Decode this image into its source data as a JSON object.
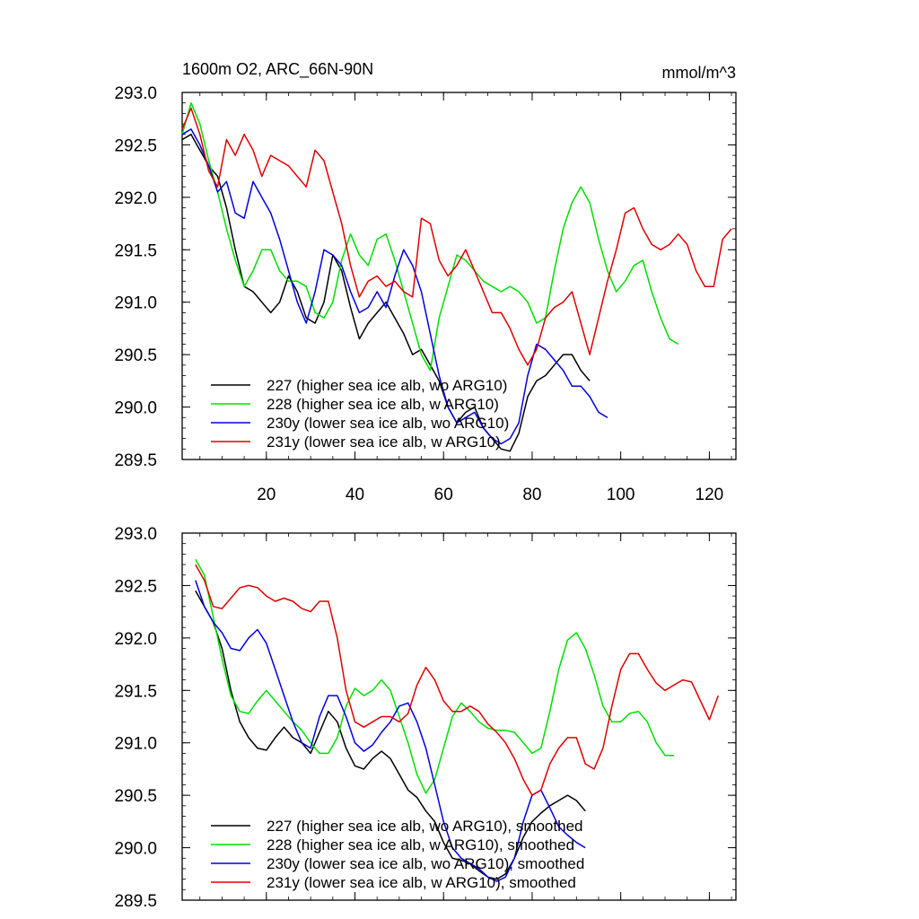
{
  "title": "1600m O2, ARC_66N-90N",
  "units": "mmol/m^3",
  "colors": {
    "227": "#000000",
    "228": "#00e000",
    "230y": "#0000e0",
    "231y": "#e00000"
  },
  "chart_data": [
    {
      "type": "line",
      "title": "1600m O2, ARC_66N-90N",
      "units_label": "mmol/m^3",
      "xlim": [
        1,
        126
      ],
      "ylim": [
        289.5,
        293.0
      ],
      "xticks": [
        20,
        40,
        60,
        80,
        100,
        120
      ],
      "xtick_labels": [
        "20",
        "40",
        "60",
        "80",
        "100",
        "120"
      ],
      "yticks": [
        289.5,
        290.0,
        290.5,
        291.0,
        291.5,
        292.0,
        292.5,
        293.0
      ],
      "ytick_labels": [
        "289.5",
        "290.0",
        "290.5",
        "291.0",
        "291.5",
        "292.0",
        "292.5",
        "293.0"
      ],
      "series": [
        {
          "name": "227 (higher sea ice alb, wo ARG10)",
          "key": "227",
          "x": [
            1,
            3,
            5,
            7,
            9,
            11,
            13,
            15,
            17,
            19,
            21,
            23,
            25,
            27,
            29,
            31,
            33,
            35,
            37,
            39,
            41,
            43,
            45,
            47,
            49,
            51,
            53,
            55,
            57,
            59,
            61,
            63,
            65,
            67,
            69,
            71,
            73,
            75,
            77,
            79,
            81,
            83,
            85,
            87,
            89,
            91,
            93
          ],
          "y": [
            292.55,
            292.6,
            292.45,
            292.3,
            292.2,
            291.9,
            291.5,
            291.15,
            291.1,
            291.0,
            290.9,
            291.0,
            291.25,
            291.1,
            290.85,
            290.8,
            291.0,
            291.45,
            291.3,
            290.95,
            290.65,
            290.8,
            290.9,
            291.0,
            290.85,
            290.7,
            290.5,
            290.55,
            290.4,
            290.25,
            290.0,
            289.85,
            289.95,
            290.0,
            289.8,
            289.7,
            289.6,
            289.58,
            289.75,
            290.1,
            290.25,
            290.3,
            290.4,
            290.5,
            290.5,
            290.35,
            290.25
          ]
        },
        {
          "name": "228 (higher sea ice alb, w ARG10)",
          "key": "228",
          "x": [
            1,
            3,
            5,
            7,
            9,
            11,
            13,
            15,
            17,
            19,
            21,
            23,
            25,
            27,
            29,
            31,
            33,
            35,
            37,
            39,
            41,
            43,
            45,
            47,
            49,
            51,
            53,
            55,
            57,
            59,
            61,
            63,
            65,
            67,
            69,
            71,
            73,
            75,
            77,
            79,
            81,
            83,
            85,
            87,
            89,
            91,
            93,
            95,
            97,
            99,
            101,
            103,
            105,
            107,
            109,
            111,
            113
          ],
          "y": [
            292.6,
            292.9,
            292.7,
            292.35,
            292.05,
            291.7,
            291.4,
            291.15,
            291.3,
            291.5,
            291.5,
            291.3,
            291.2,
            291.2,
            291.15,
            290.9,
            290.85,
            291.0,
            291.4,
            291.65,
            291.45,
            291.35,
            291.6,
            291.65,
            291.4,
            291.1,
            290.8,
            290.5,
            290.35,
            290.85,
            291.15,
            291.45,
            291.4,
            291.3,
            291.2,
            291.15,
            291.1,
            291.15,
            291.1,
            291.0,
            290.8,
            290.85,
            291.3,
            291.7,
            291.95,
            292.1,
            291.95,
            291.6,
            291.3,
            291.1,
            291.2,
            291.35,
            291.4,
            291.1,
            290.85,
            290.65,
            290.6
          ]
        },
        {
          "name": "230y (lower sea ice alb, wo ARG10)",
          "key": "230y",
          "x": [
            1,
            3,
            5,
            7,
            9,
            11,
            13,
            15,
            17,
            19,
            21,
            23,
            25,
            27,
            29,
            31,
            33,
            35,
            37,
            39,
            41,
            43,
            45,
            47,
            49,
            51,
            53,
            55,
            57,
            59,
            61,
            63,
            65,
            67,
            69,
            71,
            73,
            75,
            77,
            79,
            81,
            83,
            85,
            87,
            89,
            91,
            93,
            95,
            97
          ],
          "y": [
            292.6,
            292.65,
            292.5,
            292.3,
            292.05,
            292.15,
            291.85,
            291.8,
            292.15,
            292.0,
            291.85,
            291.6,
            291.3,
            291.0,
            290.8,
            291.1,
            291.5,
            291.45,
            291.35,
            291.1,
            290.9,
            290.95,
            291.1,
            290.95,
            291.25,
            291.5,
            291.35,
            291.1,
            290.7,
            290.3,
            290.0,
            289.85,
            289.9,
            289.95,
            289.8,
            289.7,
            289.65,
            289.7,
            289.85,
            290.3,
            290.6,
            290.55,
            290.45,
            290.35,
            290.2,
            290.2,
            290.1,
            289.95,
            289.9
          ]
        },
        {
          "name": "231y (lower sea ice alb, w ARG10)",
          "key": "231y",
          "x": [
            1,
            3,
            5,
            7,
            9,
            11,
            13,
            15,
            17,
            19,
            21,
            23,
            25,
            27,
            29,
            31,
            33,
            35,
            37,
            39,
            41,
            43,
            45,
            47,
            49,
            51,
            53,
            55,
            57,
            59,
            61,
            63,
            65,
            67,
            69,
            71,
            73,
            75,
            77,
            79,
            81,
            83,
            85,
            87,
            89,
            91,
            93,
            95,
            97,
            99,
            101,
            103,
            105,
            107,
            109,
            111,
            113,
            115,
            117,
            119,
            121,
            123,
            125
          ],
          "y": [
            292.65,
            292.85,
            292.6,
            292.25,
            292.1,
            292.55,
            292.4,
            292.6,
            292.45,
            292.2,
            292.4,
            292.35,
            292.3,
            292.2,
            292.1,
            292.45,
            292.35,
            292.05,
            291.75,
            291.35,
            291.05,
            291.2,
            291.25,
            291.15,
            291.2,
            291.1,
            291.05,
            291.8,
            291.75,
            291.4,
            291.25,
            291.35,
            291.5,
            291.3,
            291.1,
            290.9,
            290.9,
            290.75,
            290.55,
            290.4,
            290.55,
            290.85,
            290.95,
            291.0,
            291.1,
            290.8,
            290.5,
            290.85,
            291.2,
            291.5,
            291.85,
            291.9,
            291.7,
            291.55,
            291.5,
            291.55,
            291.65,
            291.55,
            291.3,
            291.15,
            291.15,
            291.6,
            291.7
          ]
        }
      ],
      "legend": {
        "placement": "bottom-left",
        "entries": [
          "227 (higher sea ice alb, wo ARG10)",
          "228 (higher sea ice alb, w ARG10)",
          "230y (lower sea ice alb, wo ARG10)",
          "231y (lower sea ice alb, w ARG10)"
        ]
      }
    },
    {
      "type": "line",
      "xlim": [
        1,
        126
      ],
      "ylim": [
        289.5,
        293.0
      ],
      "xticks": [
        20,
        40,
        60,
        80,
        100,
        120
      ],
      "yticks": [
        289.5,
        290.0,
        290.5,
        291.0,
        291.5,
        292.0,
        292.5,
        293.0
      ],
      "ytick_labels": [
        "289.5",
        "290.0",
        "290.5",
        "291.0",
        "291.5",
        "292.0",
        "292.5",
        "293.0"
      ],
      "series": [
        {
          "name": "227 (higher sea ice alb, wo ARG10), smoothed",
          "key": "227",
          "x": [
            4,
            6,
            8,
            10,
            12,
            14,
            16,
            18,
            20,
            22,
            24,
            26,
            28,
            30,
            32,
            34,
            36,
            38,
            40,
            42,
            44,
            46,
            48,
            50,
            52,
            54,
            56,
            58,
            60,
            62,
            64,
            66,
            68,
            70,
            72,
            74,
            76,
            78,
            80,
            82,
            84,
            86,
            88,
            90,
            92
          ],
          "y": [
            292.45,
            292.3,
            292.15,
            291.9,
            291.5,
            291.2,
            291.05,
            290.95,
            290.93,
            291.05,
            291.15,
            291.05,
            291.0,
            290.9,
            291.1,
            291.3,
            291.2,
            290.95,
            290.78,
            290.75,
            290.85,
            290.92,
            290.85,
            290.7,
            290.55,
            290.48,
            290.35,
            290.25,
            290.05,
            289.9,
            289.88,
            289.85,
            289.78,
            289.72,
            289.7,
            289.75,
            289.9,
            290.1,
            290.25,
            290.33,
            290.4,
            290.45,
            290.5,
            290.45,
            290.35
          ]
        },
        {
          "name": "228 (higher sea ice alb, w ARG10), smoothed",
          "key": "228",
          "x": [
            4,
            6,
            8,
            10,
            12,
            14,
            16,
            18,
            20,
            22,
            24,
            26,
            28,
            30,
            32,
            34,
            36,
            38,
            40,
            42,
            44,
            46,
            48,
            50,
            52,
            54,
            56,
            58,
            60,
            62,
            64,
            66,
            68,
            70,
            72,
            74,
            76,
            78,
            80,
            82,
            84,
            86,
            88,
            90,
            92,
            94,
            96,
            98,
            100,
            102,
            104,
            106,
            108,
            110,
            112
          ],
          "y": [
            292.75,
            292.6,
            292.2,
            291.8,
            291.45,
            291.3,
            291.28,
            291.4,
            291.5,
            291.4,
            291.3,
            291.2,
            291.12,
            291.0,
            290.9,
            290.9,
            291.05,
            291.35,
            291.52,
            291.45,
            291.5,
            291.6,
            291.5,
            291.25,
            291.0,
            290.7,
            290.52,
            290.65,
            290.95,
            291.25,
            291.38,
            291.3,
            291.2,
            291.14,
            291.12,
            291.12,
            291.1,
            291.0,
            290.9,
            290.95,
            291.3,
            291.7,
            291.98,
            292.05,
            291.9,
            291.65,
            291.35,
            291.2,
            291.2,
            291.28,
            291.3,
            291.2,
            291.0,
            290.88,
            290.88
          ]
        },
        {
          "name": "230y (lower sea ice alb, wo ARG10), smoothed",
          "key": "230y",
          "x": [
            4,
            6,
            8,
            10,
            12,
            14,
            16,
            18,
            20,
            22,
            24,
            26,
            28,
            30,
            32,
            34,
            36,
            38,
            40,
            42,
            44,
            46,
            48,
            50,
            52,
            54,
            56,
            58,
            60,
            62,
            64,
            66,
            68,
            70,
            72,
            74,
            76,
            78,
            80,
            82,
            84,
            86,
            88,
            90,
            92
          ],
          "y": [
            292.55,
            292.3,
            292.15,
            292.05,
            291.9,
            291.88,
            292.0,
            292.08,
            291.95,
            291.7,
            291.45,
            291.2,
            291.0,
            290.95,
            291.25,
            291.45,
            291.45,
            291.25,
            291.0,
            290.92,
            290.98,
            291.1,
            291.2,
            291.35,
            291.38,
            291.2,
            290.95,
            290.6,
            290.25,
            290.0,
            289.9,
            289.85,
            289.8,
            289.72,
            289.68,
            289.72,
            289.9,
            290.25,
            290.5,
            290.55,
            290.38,
            290.2,
            290.12,
            290.05,
            290.0
          ]
        },
        {
          "name": "231y (lower sea ice alb, w ARG10), smoothed",
          "key": "231y",
          "x": [
            4,
            6,
            8,
            10,
            12,
            14,
            16,
            18,
            20,
            22,
            24,
            26,
            28,
            30,
            32,
            34,
            36,
            38,
            40,
            42,
            44,
            46,
            48,
            50,
            52,
            54,
            56,
            58,
            60,
            62,
            64,
            66,
            68,
            70,
            72,
            74,
            76,
            78,
            80,
            82,
            84,
            86,
            88,
            90,
            92,
            94,
            96,
            98,
            100,
            102,
            104,
            106,
            108,
            110,
            112,
            114,
            116,
            118,
            120,
            122
          ],
          "y": [
            292.7,
            292.55,
            292.3,
            292.28,
            292.38,
            292.48,
            292.5,
            292.48,
            292.4,
            292.35,
            292.38,
            292.35,
            292.28,
            292.25,
            292.35,
            292.35,
            292.0,
            291.5,
            291.2,
            291.15,
            291.2,
            291.25,
            291.25,
            291.2,
            291.28,
            291.55,
            291.72,
            291.6,
            291.4,
            291.3,
            291.3,
            291.35,
            291.3,
            291.18,
            291.1,
            291.0,
            290.85,
            290.65,
            290.5,
            290.55,
            290.8,
            290.95,
            291.05,
            291.05,
            290.8,
            290.75,
            290.95,
            291.35,
            291.7,
            291.85,
            291.85,
            291.7,
            291.57,
            291.5,
            291.55,
            291.6,
            291.58,
            291.4,
            291.22,
            291.45
          ]
        }
      ],
      "legend": {
        "placement": "bottom-left",
        "entries": [
          "227 (higher sea ice alb, wo ARG10), smoothed",
          "228 (higher sea ice alb, w ARG10), smoothed",
          "230y (lower sea ice alb, wo ARG10), smoothed",
          "231y (lower sea ice alb, w ARG10), smoothed"
        ]
      }
    }
  ]
}
